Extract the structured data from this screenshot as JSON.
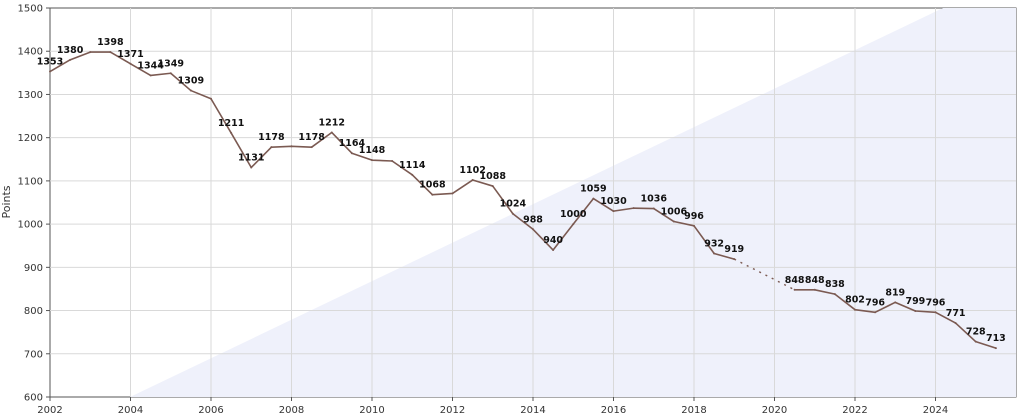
{
  "chart_data": {
    "type": "line",
    "title": "",
    "xlabel": "",
    "ylabel": "Points",
    "xlim": [
      2002,
      2026
    ],
    "ylim": [
      600,
      1500
    ],
    "x_ticks": [
      2002,
      2004,
      2006,
      2008,
      2010,
      2012,
      2014,
      2016,
      2018,
      2020,
      2022,
      2024
    ],
    "y_ticks": [
      600,
      700,
      800,
      900,
      1000,
      1100,
      1200,
      1300,
      1400,
      1500
    ],
    "grid": true,
    "line_color": "#7b5a52",
    "series": [
      {
        "points": [
          {
            "x": 2002.0,
            "y": 1353,
            "label": "1353"
          },
          {
            "x": 2002.5,
            "y": 1380,
            "label": "1380"
          },
          {
            "x": 2003.0,
            "y": 1398,
            "label": ""
          },
          {
            "x": 2003.5,
            "y": 1398,
            "label": "1398"
          },
          {
            "x": 2004.0,
            "y": 1371,
            "label": "1371"
          },
          {
            "x": 2004.5,
            "y": 1344,
            "label": "1344"
          },
          {
            "x": 2005.0,
            "y": 1349,
            "label": "1349"
          },
          {
            "x": 2005.5,
            "y": 1309,
            "label": "1309"
          },
          {
            "x": 2006.0,
            "y": 1290,
            "label": ""
          },
          {
            "x": 2006.5,
            "y": 1211,
            "label": "1211"
          },
          {
            "x": 2007.0,
            "y": 1131,
            "label": "1131"
          },
          {
            "x": 2007.5,
            "y": 1178,
            "label": "1178"
          },
          {
            "x": 2008.0,
            "y": 1180,
            "label": ""
          },
          {
            "x": 2008.5,
            "y": 1178,
            "label": "1178"
          },
          {
            "x": 2009.0,
            "y": 1212,
            "label": "1212"
          },
          {
            "x": 2009.5,
            "y": 1164,
            "label": "1164"
          },
          {
            "x": 2010.0,
            "y": 1148,
            "label": "1148"
          },
          {
            "x": 2010.5,
            "y": 1146,
            "label": ""
          },
          {
            "x": 2011.0,
            "y": 1114,
            "label": "1114"
          },
          {
            "x": 2011.5,
            "y": 1068,
            "label": "1068"
          },
          {
            "x": 2012.0,
            "y": 1071,
            "label": ""
          },
          {
            "x": 2012.5,
            "y": 1102,
            "label": "1102"
          },
          {
            "x": 2013.0,
            "y": 1088,
            "label": "1088"
          },
          {
            "x": 2013.5,
            "y": 1024,
            "label": "1024"
          },
          {
            "x": 2014.0,
            "y": 988,
            "label": "988"
          },
          {
            "x": 2014.5,
            "y": 940,
            "label": "940"
          },
          {
            "x": 2015.0,
            "y": 1000,
            "label": "1000"
          },
          {
            "x": 2015.5,
            "y": 1059,
            "label": "1059"
          },
          {
            "x": 2016.0,
            "y": 1030,
            "label": "1030"
          },
          {
            "x": 2016.5,
            "y": 1037,
            "label": ""
          },
          {
            "x": 2017.0,
            "y": 1036,
            "label": "1036"
          },
          {
            "x": 2017.5,
            "y": 1006,
            "label": "1006"
          },
          {
            "x": 2018.0,
            "y": 996,
            "label": "996"
          },
          {
            "x": 2018.5,
            "y": 932,
            "label": "932"
          },
          {
            "x": 2019.0,
            "y": 919,
            "label": "919"
          },
          {
            "x": 2020.5,
            "y": 848,
            "label": "848",
            "gap_before": true
          },
          {
            "x": 2021.0,
            "y": 848,
            "label": "848"
          },
          {
            "x": 2021.5,
            "y": 838,
            "label": "838"
          },
          {
            "x": 2022.0,
            "y": 802,
            "label": "802"
          },
          {
            "x": 2022.5,
            "y": 796,
            "label": "796"
          },
          {
            "x": 2023.0,
            "y": 819,
            "label": "819"
          },
          {
            "x": 2023.5,
            "y": 799,
            "label": "799"
          },
          {
            "x": 2024.0,
            "y": 796,
            "label": "796"
          },
          {
            "x": 2024.5,
            "y": 771,
            "label": "771"
          },
          {
            "x": 2025.0,
            "y": 728,
            "label": "728"
          },
          {
            "x": 2025.5,
            "y": 713,
            "label": "713"
          }
        ]
      }
    ]
  }
}
